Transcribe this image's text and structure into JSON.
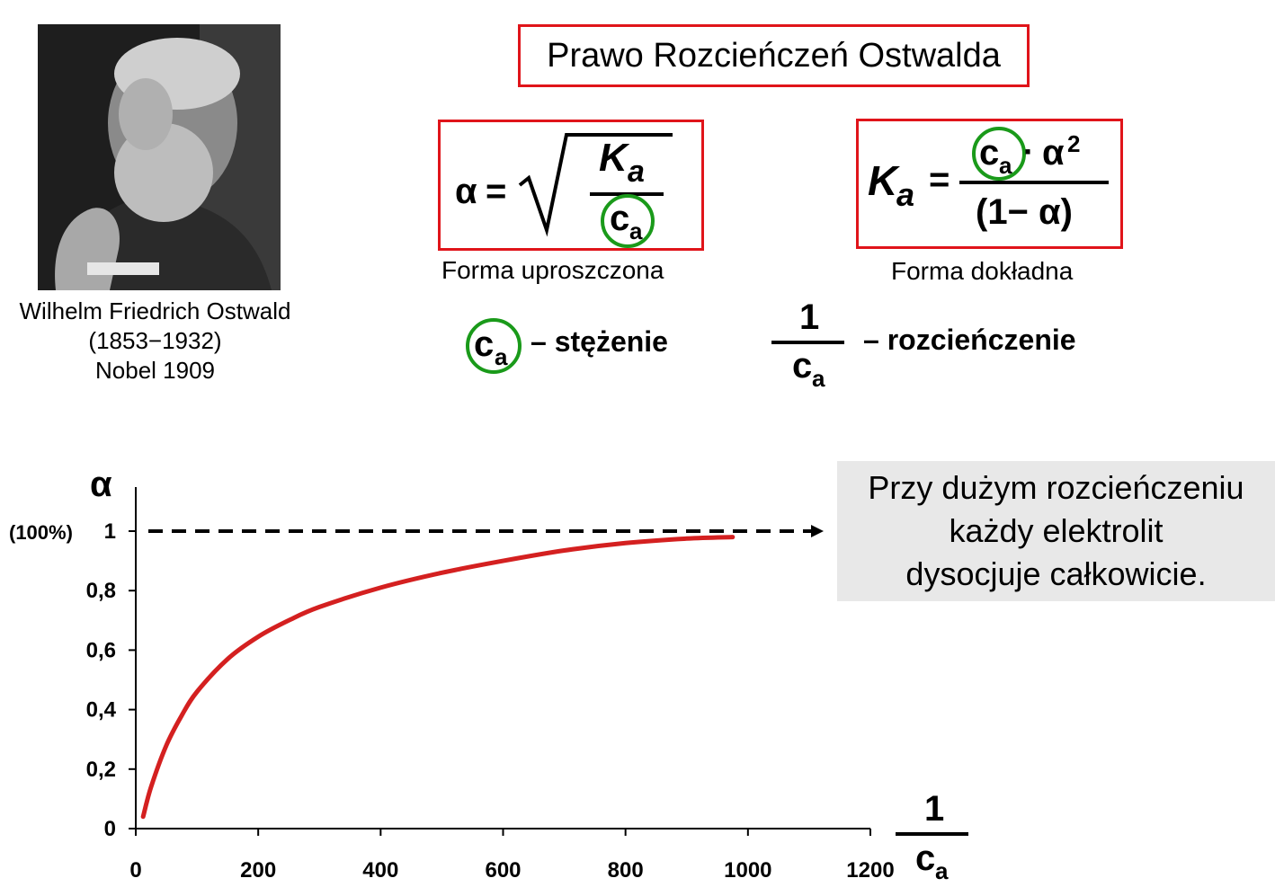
{
  "title": "Prawo Rozcieńczeń Ostwalda",
  "portrait": {
    "name": "Wilhelm Friedrich Ostwald",
    "years": "(1853−1932)",
    "nobel": "Nobel 1909"
  },
  "formulas": {
    "simplified": {
      "alpha": "α",
      "eq": "=",
      "K": "K",
      "a_sub": "a",
      "c": "c",
      "c_sub": "a",
      "label": "Forma uproszczona"
    },
    "exact": {
      "K": "K",
      "a_sub": "a",
      "eq": "=",
      "c": "c",
      "c_sub": "a",
      "dot": "·",
      "alpha2": "α",
      "sup": "2",
      "denominator": "(1− α)",
      "label": "Forma dokładna"
    }
  },
  "legend_terms": {
    "concentration": {
      "c": "c",
      "sub": "a",
      "text": "– stężenie"
    },
    "dilution": {
      "num": "1",
      "c": "c",
      "sub": "a",
      "text": "– rozcieńczenie"
    }
  },
  "note": {
    "lines": [
      "Przy dużym rozcieńczeniu",
      "każdy elektrolit",
      "dysocjuje całkowicie."
    ]
  },
  "colors": {
    "red": "#e0141a",
    "green": "#1a9a1a",
    "curve": "#d42020",
    "note_bg": "#e8e8e8"
  },
  "chart_data": {
    "type": "line",
    "series": [
      {
        "x": [
          12,
          25,
          50,
          75,
          100,
          150,
          200,
          250,
          300,
          400,
          500,
          600,
          700,
          800,
          900,
          975
        ],
        "y": [
          0.04,
          0.14,
          0.28,
          0.38,
          0.46,
          0.57,
          0.645,
          0.7,
          0.745,
          0.81,
          0.86,
          0.9,
          0.935,
          0.96,
          0.975,
          0.98
        ]
      }
    ],
    "xlim": [
      0,
      1200
    ],
    "ylim": [
      0,
      1
    ],
    "x_ticks": [
      0,
      200,
      400,
      600,
      800,
      1000,
      1200
    ],
    "y_ticks": [
      {
        "value": 0,
        "label": "0"
      },
      {
        "value": 0.2,
        "label": "0,2"
      },
      {
        "value": 0.4,
        "label": "0,4"
      },
      {
        "value": 0.6,
        "label": "0,6"
      },
      {
        "value": 0.8,
        "label": "0,8"
      },
      {
        "value": 1,
        "label": "1"
      }
    ],
    "ylabel": "α",
    "y_extra_label": "(100%)",
    "xlabel": {
      "num": "1",
      "c": "c",
      "sub": "a"
    },
    "reference_line": {
      "y": 1,
      "style": "dashed-arrow"
    },
    "grid": false
  }
}
